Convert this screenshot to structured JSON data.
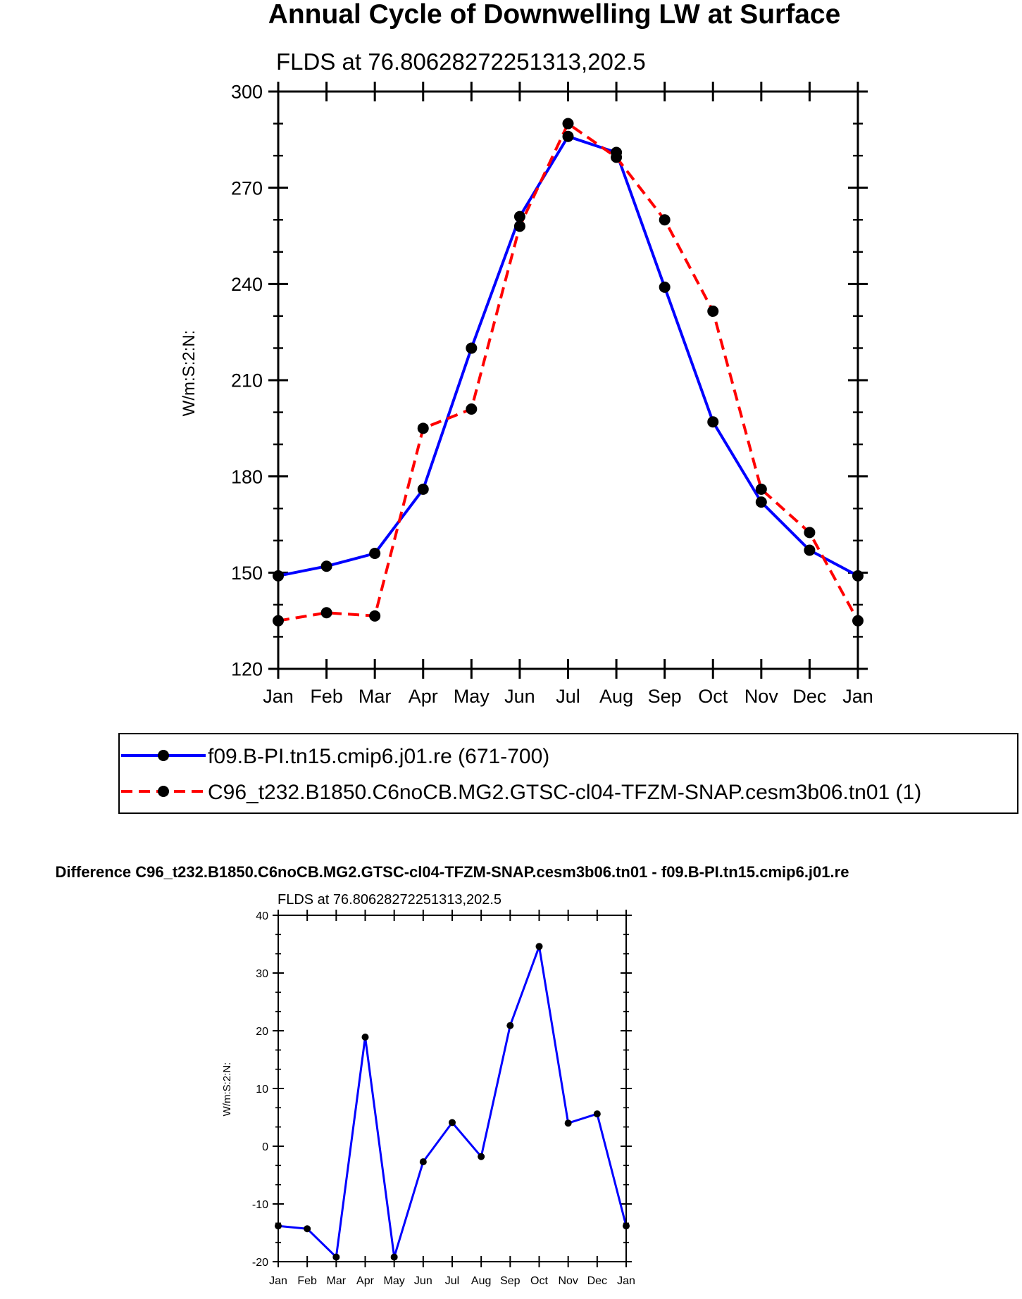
{
  "chart_data": [
    {
      "type": "line",
      "title": "Annual Cycle of Downwelling LW at Surface",
      "subtitle": "FLDS at 76.80628272251313,202.5",
      "ylabel": "W/m:S:2:N:",
      "xlabel": "",
      "ylim": [
        120,
        300
      ],
      "yticks": [
        "120",
        "150",
        "180",
        "210",
        "240",
        "270",
        "300"
      ],
      "categories": [
        "Jan",
        "Feb",
        "Mar",
        "Apr",
        "May",
        "Jun",
        "Jul",
        "Aug",
        "Sep",
        "Oct",
        "Nov",
        "Dec",
        "Jan"
      ],
      "grid": false,
      "legend_position": "bottom",
      "series": [
        {
          "name": "f09.B-PI.tn15.cmip6.j01.re (671-700)",
          "color": "#0000ff",
          "dash": "solid",
          "values": [
            149,
            152,
            156,
            176,
            220,
            261,
            286,
            281,
            239,
            197,
            172,
            157,
            149
          ]
        },
        {
          "name": "C96_t232.B1850.C6noCB.MG2.GTSC-cl04-TFZM-SNAP.cesm3b06.tn01 (1)",
          "color": "#ff0000",
          "dash": "dashed",
          "values": [
            135,
            137.5,
            136.5,
            195,
            201,
            258,
            290,
            279.5,
            260,
            231.5,
            176,
            162.5,
            135
          ]
        }
      ]
    },
    {
      "type": "line",
      "title": "Difference C96_t232.B1850.C6noCB.MG2.GTSC-cl04-TFZM-SNAP.cesm3b06.tn01 - f09.B-PI.tn15.cmip6.j01.re",
      "subtitle": "FLDS at 76.80628272251313,202.5",
      "ylabel": "W/m:S:2:N:",
      "xlabel": "",
      "ylim": [
        -20,
        40
      ],
      "yticks": [
        "-20",
        "-10",
        "0",
        "10",
        "20",
        "30",
        "40"
      ],
      "categories": [
        "Jan",
        "Feb",
        "Mar",
        "Apr",
        "May",
        "Jun",
        "Jul",
        "Aug",
        "Sep",
        "Oct",
        "Nov",
        "Dec",
        "Jan"
      ],
      "grid": false,
      "series": [
        {
          "name": "difference",
          "color": "#0000ff",
          "dash": "solid",
          "values": [
            -13.8,
            -14.3,
            -19.2,
            18.9,
            -19.2,
            -2.7,
            4.1,
            -1.8,
            20.9,
            34.6,
            4.0,
            5.6,
            -13.8
          ]
        }
      ]
    }
  ]
}
